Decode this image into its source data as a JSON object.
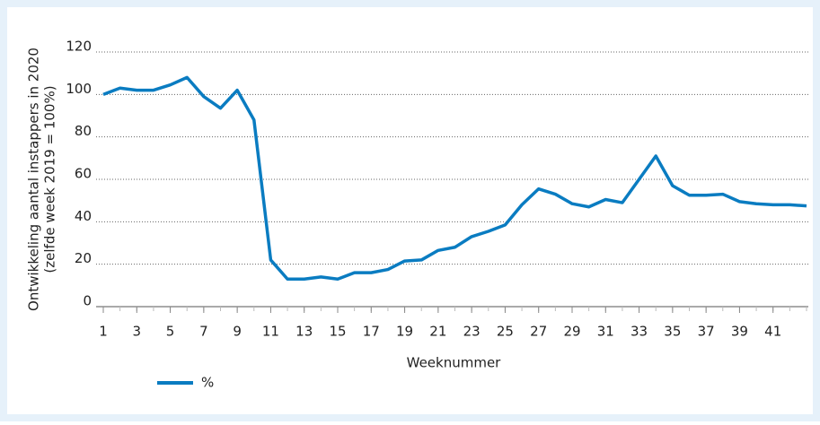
{
  "chart_data": {
    "type": "line",
    "y_label": [
      "Ontwikkeling aantal instappers in 2020",
      "(zelfde week 2019 = 100%)"
    ],
    "x_label": "Weeknummer",
    "x": [
      1,
      2,
      3,
      4,
      5,
      6,
      7,
      8,
      9,
      10,
      11,
      12,
      13,
      14,
      15,
      16,
      17,
      18,
      19,
      20,
      21,
      22,
      23,
      24,
      25,
      26,
      27,
      28,
      29,
      30,
      31,
      32,
      33,
      34,
      35,
      36,
      37,
      38,
      39,
      40,
      41,
      42,
      43
    ],
    "series": [
      {
        "name": "%",
        "color": "#0a7cc1",
        "values": [
          100,
          103,
          102,
          102,
          104.5,
          108,
          99,
          93.5,
          102,
          88,
          22,
          13,
          13,
          14,
          13,
          16,
          16,
          17.5,
          21.5,
          22,
          26.5,
          28,
          33,
          35.5,
          38.5,
          48,
          55.5,
          53,
          48.5,
          47,
          50.5,
          49,
          60,
          71,
          57,
          52.5,
          52.5,
          53,
          49.5,
          48.5,
          48,
          48,
          47.5
        ]
      }
    ],
    "xlim": [
      1,
      43
    ],
    "xticks": [
      1,
      3,
      5,
      7,
      9,
      11,
      13,
      15,
      17,
      19,
      21,
      23,
      25,
      27,
      29,
      31,
      33,
      35,
      37,
      39,
      41
    ],
    "ylim": [
      0,
      120
    ],
    "yticks": [
      0,
      20,
      40,
      60,
      80,
      100,
      120
    ],
    "grid": true
  }
}
